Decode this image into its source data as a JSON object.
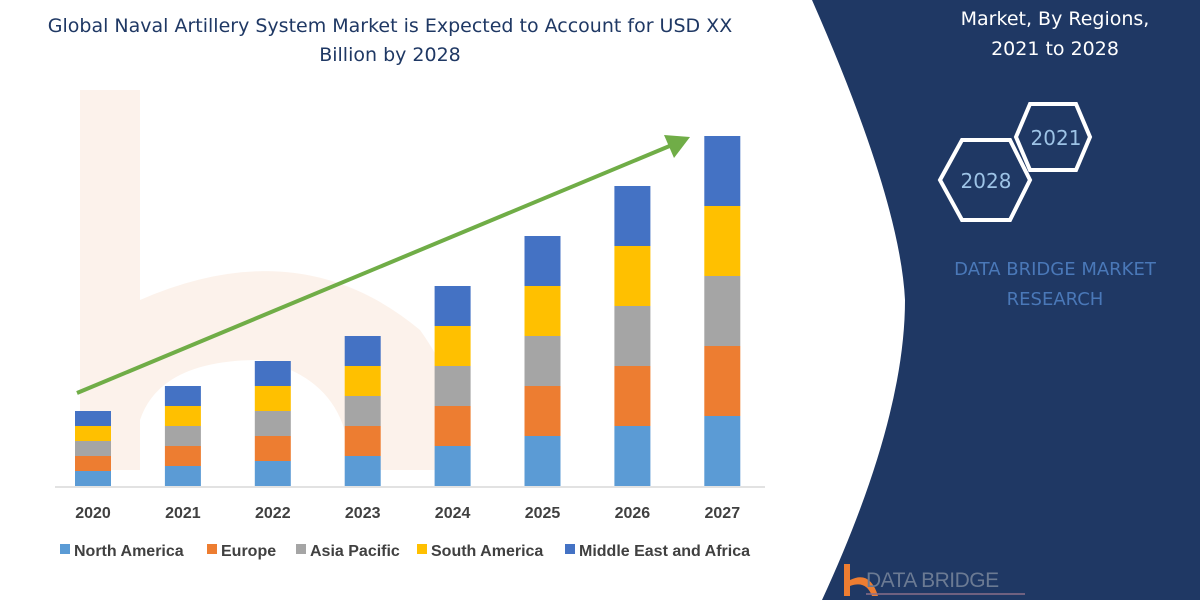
{
  "chart_data": {
    "type": "bar",
    "stacked": true,
    "title": "Global Naval Artillery System Market is Expected to Account for USD XX Billion by 2028",
    "categories": [
      "2020",
      "2021",
      "2022",
      "2023",
      "2024",
      "2025",
      "2026",
      "2027"
    ],
    "series": [
      {
        "name": "North America",
        "color": "#5b9bd5",
        "values": [
          15,
          20,
          25,
          30,
          40,
          50,
          60,
          70
        ]
      },
      {
        "name": "Europe",
        "color": "#ed7d31",
        "values": [
          15,
          20,
          25,
          30,
          40,
          50,
          60,
          70
        ]
      },
      {
        "name": "Asia Pacific",
        "color": "#a5a5a5",
        "values": [
          15,
          20,
          25,
          30,
          40,
          50,
          60,
          70
        ]
      },
      {
        "name": "South America",
        "color": "#ffc000",
        "values": [
          15,
          20,
          25,
          30,
          40,
          50,
          60,
          70
        ]
      },
      {
        "name": "Middle East and Africa",
        "color": "#4472c4",
        "values": [
          15,
          20,
          25,
          30,
          40,
          50,
          60,
          70
        ]
      }
    ],
    "xlabel": "",
    "ylabel": "",
    "y_axis_shown": false,
    "grid": false,
    "legend_placement": "bottom",
    "trend_arrow_color": "#70ad47"
  },
  "panel": {
    "lines": [
      "Market, By Regions,",
      "2021 to 2028"
    ],
    "hex_years": [
      "2021",
      "2028"
    ],
    "brand_lines": [
      "DATA BRIDGE MARKET",
      "RESEARCH"
    ],
    "background": "#1f3864"
  },
  "logo": {
    "text": "DATA BRIDGE"
  }
}
